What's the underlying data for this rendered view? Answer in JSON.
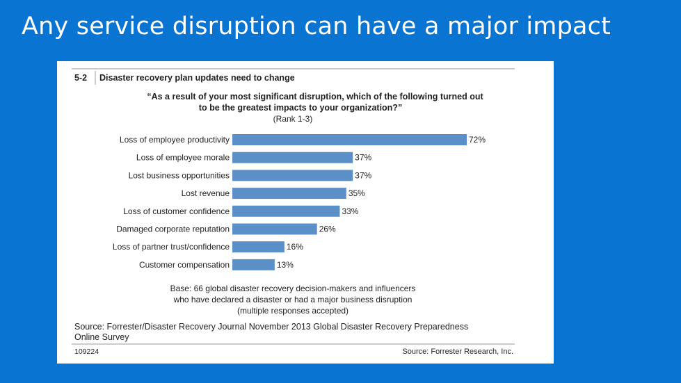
{
  "slide": {
    "title": "Any service disruption can have a major impact",
    "accent_color": "#0a74d3"
  },
  "figure": {
    "number": "5-2",
    "heading": "Disaster recovery plan updates need to change",
    "question_line1": "“As a result of your most significant disruption, which of the following turned out",
    "question_line2": "to be the greatest impacts to your organization?”",
    "rank_note": "(Rank 1-3)",
    "base_line1": "Base: 66 global disaster recovery decision-makers and influencers",
    "base_line2": "who have declared a disaster or had a major business disruption",
    "base_line3": "(multiple responses accepted)",
    "source_line1": "Source: Forrester/Disaster Recovery Journal November 2013 Global Disaster Recovery Preparedness",
    "source_line2": "Online Survey",
    "footer_id": "109224",
    "footer_source": "Source: Forrester Research, Inc."
  },
  "chart_data": {
    "type": "bar",
    "orientation": "horizontal",
    "bar_color": "#5b8fc7",
    "value_suffix": "%",
    "categories": [
      "Loss of employee productivity",
      "Loss of employee morale",
      "Lost business opportunities",
      "Lost revenue",
      "Loss of customer confidence",
      "Damaged corporate reputation",
      "Loss of partner trust/confidence",
      "Customer compensation"
    ],
    "values": [
      72,
      37,
      37,
      35,
      33,
      26,
      16,
      13
    ],
    "xlim": [
      0,
      72
    ],
    "grid": false,
    "legend": false
  }
}
